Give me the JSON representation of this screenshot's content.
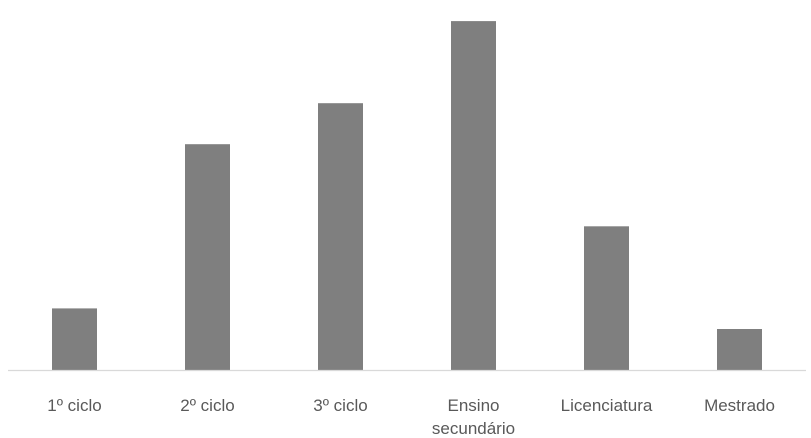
{
  "chart_data": {
    "type": "bar",
    "title": "",
    "xlabel": "",
    "ylabel": "",
    "categories": [
      [
        "1º ciclo"
      ],
      [
        "2º ciclo"
      ],
      [
        "3º ciclo"
      ],
      [
        "Ensino",
        "secundário"
      ],
      [
        "Licenciatura"
      ],
      [
        "Mestrado"
      ]
    ],
    "values": [
      3,
      11,
      13,
      17,
      7,
      2
    ],
    "ylim": [
      0,
      17.2
    ],
    "grid": false,
    "legend": "none",
    "colors": {
      "bar": "#7f7f7f",
      "axis": "#d9d9d9",
      "text": "#595959"
    }
  }
}
